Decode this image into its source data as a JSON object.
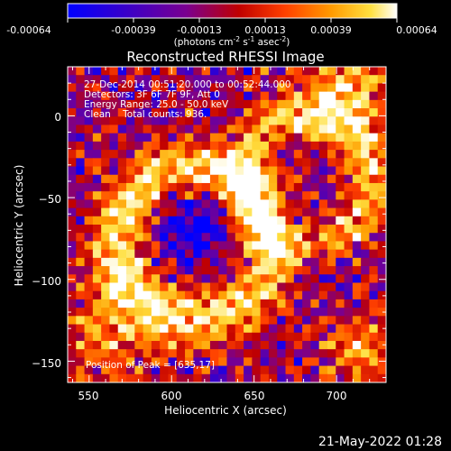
{
  "colorbar": {
    "tick_labels": [
      "-0.00064",
      "-0.00039",
      "-0.00013",
      "0.00013",
      "0.00039",
      "0.00064"
    ],
    "colors": [
      "#0000ff",
      "#3a00c8",
      "#7a0090",
      "#c00000",
      "#ff4000",
      "#ff9a00",
      "#ffe040",
      "#ffffff"
    ],
    "unit_parts": {
      "a": "(photons cm",
      "b": "-2",
      "c": " s",
      "d": "-1",
      "e": " asec",
      "f": "-2",
      "g": ")"
    }
  },
  "title": "Reconstructed RHESSI Image",
  "info_lines": [
    "27-Dec-2014 00:51:20.000 to 00:52:44.000",
    "Detectors: 3F 6F 7F 9F, Att 0",
    "Energy Range: 25.0 - 50.0 keV",
    "Clean    Total counts: 936."
  ],
  "peak_label": "Position of Peak = [635,17]",
  "x_axis": {
    "label": "Heliocentric X (arcsec)",
    "ticks": [
      {
        "value": 550,
        "label": "550"
      },
      {
        "value": 600,
        "label": "600"
      },
      {
        "value": 650,
        "label": "650"
      },
      {
        "value": 700,
        "label": "700"
      }
    ],
    "range": [
      537,
      730
    ]
  },
  "y_axis": {
    "label": "Heliocentric Y (arcsec)",
    "ticks": [
      {
        "value": 0,
        "label": "0"
      },
      {
        "value": -50,
        "label": "−50"
      },
      {
        "value": -100,
        "label": "−100"
      },
      {
        "value": -150,
        "label": "−150"
      }
    ],
    "range": [
      -163,
      30
    ]
  },
  "footer_date": "21-May-2022 01:28"
}
